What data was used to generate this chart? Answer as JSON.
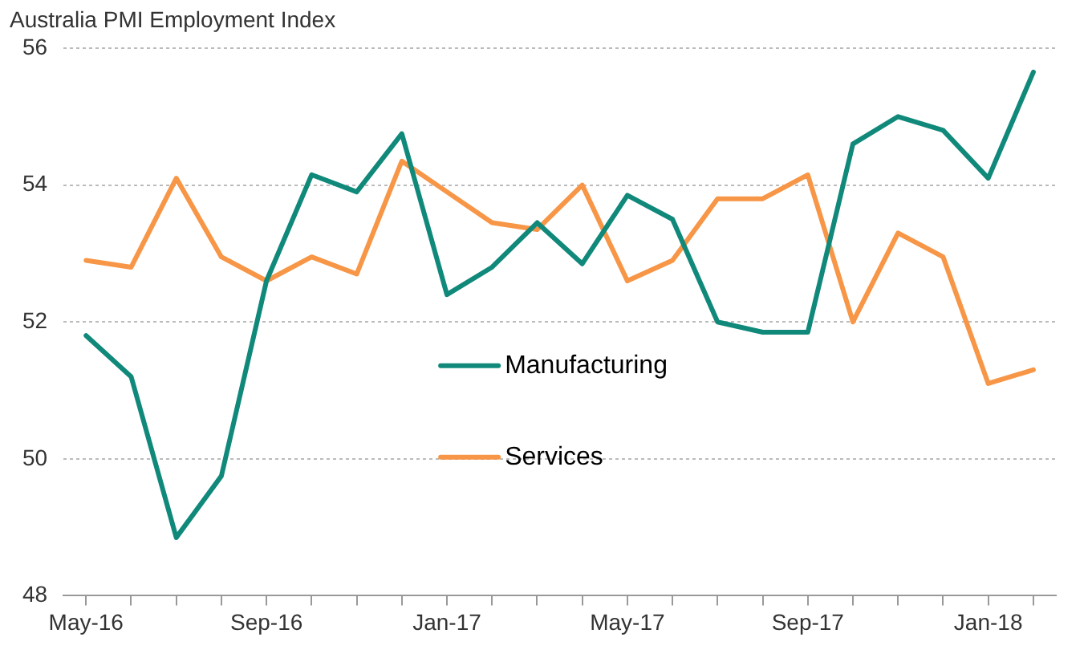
{
  "chart_data": {
    "type": "line",
    "title": "Australia PMI Employment Index",
    "categories": [
      "May-16",
      null,
      null,
      null,
      "Sep-16",
      null,
      null,
      null,
      "Jan-17",
      null,
      null,
      null,
      "May-17",
      null,
      null,
      null,
      "Sep-17",
      null,
      null,
      null,
      "Jan-18",
      null
    ],
    "series": [
      {
        "name": "Manufacturing",
        "color": "#10897b",
        "values": [
          51.8,
          51.2,
          48.85,
          49.75,
          52.6,
          54.15,
          53.9,
          54.75,
          52.4,
          52.8,
          53.45,
          52.85,
          53.85,
          53.5,
          52.0,
          51.85,
          51.85,
          54.6,
          55.0,
          54.8,
          54.1,
          55.65
        ]
      },
      {
        "name": "Services",
        "color": "#f79646",
        "values": [
          52.9,
          52.8,
          54.1,
          52.95,
          52.6,
          52.95,
          52.7,
          54.35,
          53.9,
          53.45,
          53.35,
          54.0,
          52.6,
          52.9,
          53.8,
          53.8,
          54.15,
          52.0,
          53.3,
          52.95,
          51.1,
          51.3
        ]
      }
    ],
    "ylim": [
      48,
      56
    ],
    "yticks": [
      48,
      50,
      52,
      54,
      56
    ],
    "grid": "y",
    "legend": "center",
    "marker": "none",
    "line_style": "solid"
  }
}
